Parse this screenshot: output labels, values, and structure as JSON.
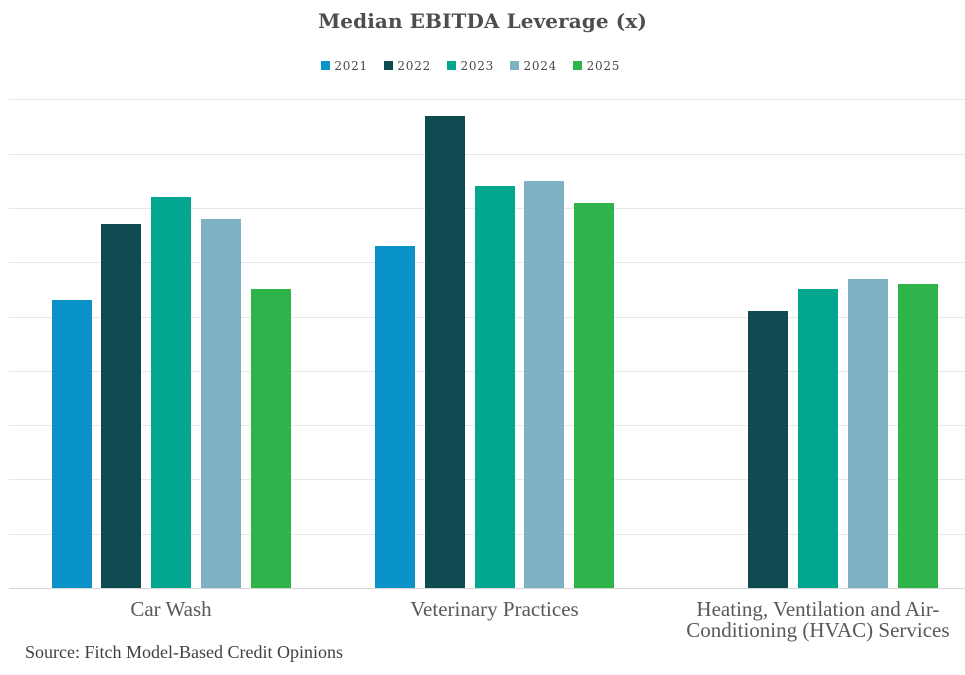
{
  "chart_data": {
    "type": "bar",
    "title": "Median EBITDA Leverage (x)",
    "categories": [
      "Car Wash",
      "Veterinary Practices",
      "Heating, Ventilation and Air-Conditioning (HVAC) Services"
    ],
    "series": [
      {
        "name": "2021",
        "color": "#0a93c9",
        "values": [
          5.3,
          6.3,
          null
        ]
      },
      {
        "name": "2022",
        "color": "#0f4a50",
        "values": [
          6.7,
          8.7,
          5.1
        ]
      },
      {
        "name": "2023",
        "color": "#03a78f",
        "values": [
          7.2,
          7.4,
          5.5
        ]
      },
      {
        "name": "2024",
        "color": "#7db1c3",
        "values": [
          6.8,
          7.5,
          5.7
        ]
      },
      {
        "name": "2025",
        "color": "#2fb44c",
        "values": [
          5.5,
          7.1,
          5.6
        ]
      }
    ],
    "ylim": [
      0,
      9
    ],
    "gridline_step": 1,
    "grid": true,
    "legend_position": "top",
    "xlabel": "",
    "ylabel": "",
    "source": "Source: Fitch Model-Based Credit Opinions"
  },
  "colors": {
    "title_text": "#4d4d4d",
    "legend_text": "#4a4a4a",
    "axis_label_text": "#595959",
    "source_text": "#3f3f3f",
    "gridline": "#e8e8e8",
    "axis_line": "#d6d6d6",
    "background": "#ffffff"
  }
}
